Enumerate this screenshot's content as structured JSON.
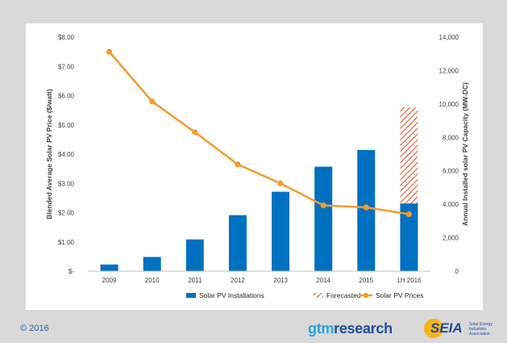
{
  "chart_data": {
    "type": "bar",
    "categories": [
      "2009",
      "2010",
      "2011",
      "2012",
      "2013",
      "2014",
      "2015",
      "1H 2016"
    ],
    "series": [
      {
        "name": "Solar PV Installations",
        "kind": "bar",
        "axis": "right",
        "values": [
          400,
          850,
          1900,
          3350,
          4750,
          6250,
          7250,
          4050
        ],
        "color": "#0070c0"
      },
      {
        "name": "Forecasted",
        "kind": "bar-hatched",
        "axis": "right",
        "values": [
          null,
          null,
          null,
          null,
          null,
          null,
          null,
          9800
        ],
        "color": "#e8623b"
      },
      {
        "name": "Solar PV Prices",
        "kind": "line",
        "axis": "left",
        "values": [
          7.5,
          5.8,
          4.75,
          3.65,
          3.0,
          2.25,
          2.18,
          1.95
        ],
        "color": "#f79a2d"
      }
    ],
    "y_left": {
      "label": "Blended Average Solar PV Price ($/watt)",
      "ylim": [
        0,
        8
      ],
      "ticks": [
        0,
        1,
        2,
        3,
        4,
        5,
        6,
        7,
        8
      ],
      "tick_labels": [
        "$-",
        "$1.00",
        "$2.00",
        "$3.00",
        "$4.00",
        "$5.00",
        "$6.00",
        "$7.00",
        "$8.00"
      ]
    },
    "y_right": {
      "label": "Annual Installed solar PV Capacity (MW-DC)",
      "ylim": [
        0,
        14000
      ],
      "ticks": [
        0,
        2000,
        4000,
        6000,
        8000,
        10000,
        12000,
        14000
      ],
      "tick_labels": [
        "0",
        "2,000",
        "4,000",
        "6,000",
        "8,000",
        "10,000",
        "12,000",
        "14,000"
      ]
    },
    "legend_placement": "bottom-right",
    "grid": false
  },
  "footer": {
    "copyright": "© 2016",
    "logo_gtm_a": "gtm",
    "logo_gtm_b": "research",
    "logo_seia": "SEIA",
    "logo_seia_tag": "Solar Energy Industries Association"
  }
}
